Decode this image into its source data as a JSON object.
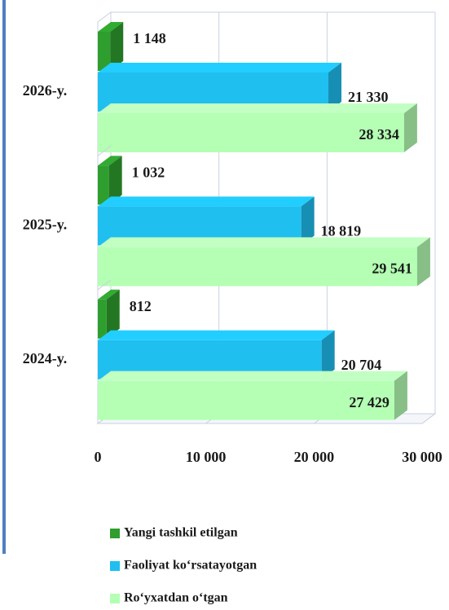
{
  "chart_data": {
    "type": "bar",
    "orientation": "horizontal",
    "categories": [
      "2026-y.",
      "2025-y.",
      "2024-y."
    ],
    "series": [
      {
        "name": "Yangi tashkil etilgan",
        "color": "#2e9e2e",
        "values": [
          1148,
          1032,
          812
        ],
        "value_labels": [
          "1 148",
          "1 032",
          "812"
        ]
      },
      {
        "name": "Faoliyat ko‘rsatayotgan",
        "color": "#1fbff0",
        "values": [
          21330,
          18819,
          20704
        ],
        "value_labels": [
          "21 330",
          "18 819",
          "20 704"
        ]
      },
      {
        "name": "Ro‘yxatdan o‘tgan",
        "color": "#b4ffb4",
        "values": [
          28334,
          29541,
          27429
        ],
        "value_labels": [
          "28 334",
          "29 541",
          "27 429"
        ]
      }
    ],
    "xlim": [
      0,
      30000
    ],
    "xticks": [
      0,
      {
        "value": 10000,
        "label": "10 000"
      },
      {
        "value": 20000,
        "label": "20 000"
      },
      {
        "value": 30000,
        "label": "30 000"
      }
    ],
    "grid": true,
    "legend": "bottom"
  }
}
